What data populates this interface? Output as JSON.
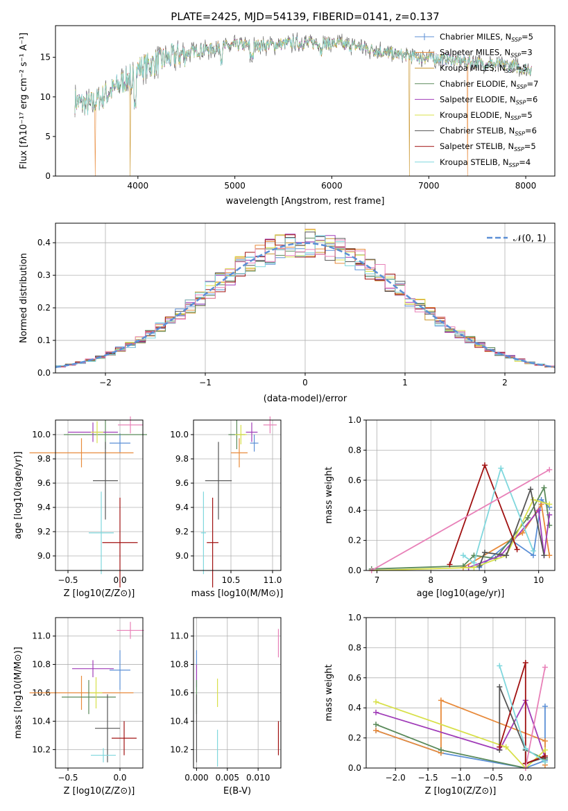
{
  "figure": {
    "title": "PLATE=2425, MJD=54139, FIBERID=0141, z=0.137"
  },
  "colors": {
    "Chabrier MILES": "#5b8fd6",
    "Salpeter MILES": "#e88a3a",
    "Kroupa MILES": "#c9942a",
    "Chabrier ELODIE": "#5a8a5a",
    "Salpeter ELODIE": "#a03cb8",
    "Kroupa ELODIE": "#d8e04a",
    "Chabrier STELIB": "#555555",
    "Salpeter STELIB": "#a01010",
    "Kroupa STELIB": "#7fd7dd",
    "extra": "#e880b8",
    "gauss": "#5b8fd6"
  },
  "chart_data": [
    {
      "id": "spectrum",
      "type": "line",
      "xlabel": "wavelength [Angstrom, rest frame]",
      "ylabel": "Flux [f_λ10^-17 erg cm^-2 s^-1 A^-1]",
      "xlim": [
        3150,
        8300
      ],
      "ylim": [
        0,
        19
      ],
      "xticks": [
        "4000",
        "5000",
        "6000",
        "7000",
        "8000"
      ],
      "yticks": [
        "0",
        "5",
        "10",
        "15"
      ],
      "legend_position": "top-right",
      "legend": [
        "Chabrier MILES, N_SSP=5",
        "Salpeter MILES, N_SSP=3",
        "Kroupa MILES, N_SSP=5",
        "Chabrier ELODIE, N_SSP=7",
        "Salpeter ELODIE, N_SSP=6",
        "Kroupa ELODIE, N_SSP=5",
        "Chabrier STELIB, N_SSP=6",
        "Salpeter STELIB, N_SSP=5",
        "Kroupa STELIB, N_SSP=4"
      ],
      "continuum_points": [
        [
          3350,
          9.5
        ],
        [
          3500,
          9.0
        ],
        [
          3700,
          10.5
        ],
        [
          3900,
          12.5
        ],
        [
          4000,
          13.5
        ],
        [
          4200,
          14.5
        ],
        [
          4500,
          15.5
        ],
        [
          4700,
          16.0
        ],
        [
          5000,
          16.5
        ],
        [
          5300,
          16.5
        ],
        [
          5600,
          16.8
        ],
        [
          6000,
          16.8
        ],
        [
          6300,
          16.3
        ],
        [
          6600,
          15.5
        ],
        [
          6900,
          15.0
        ],
        [
          7200,
          14.8
        ],
        [
          7500,
          14.3
        ],
        [
          7800,
          14.0
        ],
        [
          8050,
          13.5
        ]
      ],
      "dropouts": [
        {
          "model": "Salpeter MILES",
          "x": 3560
        },
        {
          "model": "Kroupa MILES",
          "x": 3920
        },
        {
          "model": "Kroupa MILES",
          "x": 6800
        },
        {
          "model": "Salpeter MILES",
          "x": 7400
        }
      ]
    },
    {
      "id": "residual-histogram",
      "type": "histogram",
      "xlabel": "(data-model)/error",
      "ylabel": "Normed distribution",
      "xlim": [
        -2.5,
        2.5
      ],
      "ylim": [
        0,
        0.46
      ],
      "xticks": [
        "−2",
        "−1",
        "0",
        "1",
        "2"
      ],
      "yticks": [
        "0.0",
        "0.1",
        "0.2",
        "0.3",
        "0.4"
      ],
      "grid": true,
      "legend": [
        "𝒩(0, 1)"
      ],
      "legend_position": "top-right",
      "bin_width": 0.1,
      "reference_curve": "normal(0,1)"
    },
    {
      "id": "age-vs-Z",
      "type": "scatter",
      "xlabel": "Z [log10(Z/Z⊙)]",
      "ylabel": "age  [log10(age/yr)]",
      "xlim": [
        -0.62,
        0.22
      ],
      "ylim": [
        8.88,
        10.12
      ],
      "xticks": [
        "−0.5",
        "0.0"
      ],
      "xtick_values": [
        -0.5,
        0.0
      ],
      "yticks": [
        "9.0",
        "9.2",
        "9.4",
        "9.6",
        "9.8",
        "10.0"
      ],
      "ytick_values": [
        9.0,
        9.2,
        9.4,
        9.6,
        9.8,
        10.0
      ],
      "grid": true,
      "points": [
        {
          "model": "Chabrier MILES",
          "x": 0.0,
          "y": 9.93,
          "xerr": 0.1,
          "yerr": 0.08
        },
        {
          "model": "Salpeter MILES",
          "x": -0.37,
          "y": 9.85,
          "xerr": 0.5,
          "yerr": 0.12
        },
        {
          "model": "Chabrier ELODIE",
          "x": -0.14,
          "y": 10.0,
          "xerr": 0.4,
          "yerr": 0.12
        },
        {
          "model": "Salpeter ELODIE",
          "x": -0.26,
          "y": 10.02,
          "xerr": 0.24,
          "yerr": 0.08
        },
        {
          "model": "Kroupa ELODIE",
          "x": -0.22,
          "y": 10.02,
          "xerr": 0.06,
          "yerr": 0.09
        },
        {
          "model": "Chabrier STELIB",
          "x": -0.14,
          "y": 9.62,
          "xerr": 0.12,
          "yerr": 0.32
        },
        {
          "model": "Salpeter STELIB",
          "x": 0.0,
          "y": 9.11,
          "xerr": 0.17,
          "yerr": 0.37
        },
        {
          "model": "Kroupa STELIB",
          "x": -0.18,
          "y": 9.19,
          "xerr": 0.12,
          "yerr": 0.34
        },
        {
          "model": "extra",
          "x": 0.1,
          "y": 10.08,
          "xerr": 0.12,
          "yerr": 0.07
        }
      ]
    },
    {
      "id": "age-vs-mass",
      "type": "scatter",
      "xlabel": "mass [log10(M/M⊙)]",
      "ylabel": "",
      "xlim": [
        10.05,
        11.1
      ],
      "ylim": [
        8.88,
        10.12
      ],
      "xticks": [
        "10.5",
        "11.0"
      ],
      "xtick_values": [
        10.5,
        11.0
      ],
      "yticks": [
        "9.0",
        "9.2",
        "9.4",
        "9.6",
        "9.8",
        "10.0"
      ],
      "ytick_values": [
        9.0,
        9.2,
        9.4,
        9.6,
        9.8,
        10.0
      ],
      "grid": true,
      "points": [
        {
          "model": "Chabrier MILES",
          "x": 10.78,
          "y": 9.93,
          "xerr": 0.05,
          "yerr": 0.07
        },
        {
          "model": "Salpeter MILES",
          "x": 10.6,
          "y": 9.85,
          "xerr": 0.1,
          "yerr": 0.12
        },
        {
          "model": "Chabrier ELODIE",
          "x": 10.57,
          "y": 10.0,
          "xerr": 0.1,
          "yerr": 0.12
        },
        {
          "model": "Salpeter ELODIE",
          "x": 10.75,
          "y": 10.02,
          "xerr": 0.07,
          "yerr": 0.08
        },
        {
          "model": "Kroupa ELODIE",
          "x": 10.62,
          "y": 10.0,
          "xerr": 0.07,
          "yerr": 0.08
        },
        {
          "model": "Chabrier STELIB",
          "x": 10.35,
          "y": 9.62,
          "xerr": 0.16,
          "yerr": 0.32
        },
        {
          "model": "Salpeter STELIB",
          "x": 10.28,
          "y": 9.11,
          "xerr": 0.07,
          "yerr": 0.37
        },
        {
          "model": "Kroupa STELIB",
          "x": 10.17,
          "y": 9.19,
          "xerr": 0.03,
          "yerr": 0.34
        },
        {
          "model": "extra",
          "x": 10.97,
          "y": 10.08,
          "xerr": 0.08,
          "yerr": 0.07
        }
      ]
    },
    {
      "id": "massweight-vs-age",
      "type": "line",
      "xlabel": "age  [log10(age/yr)]",
      "ylabel": "mass weight",
      "xlim": [
        6.8,
        10.3
      ],
      "ylim": [
        0,
        1
      ],
      "xticks": [
        "7",
        "8",
        "9",
        "10"
      ],
      "xtick_values": [
        7,
        8,
        9,
        10
      ],
      "yticks": [
        "0.0",
        "0.2",
        "0.4",
        "0.6",
        "0.8",
        "1.0"
      ],
      "ytick_values": [
        0,
        0.2,
        0.4,
        0.6,
        0.8,
        1.0
      ],
      "grid": true,
      "series": [
        {
          "model": "Chabrier MILES",
          "points": [
            [
              8.9,
              0.02
            ],
            [
              9.5,
              0.2
            ],
            [
              9.9,
              0.1
            ],
            [
              10.05,
              0.47
            ],
            [
              10.2,
              0.42
            ]
          ]
        },
        {
          "model": "Salpeter MILES",
          "points": [
            [
              8.6,
              0.02
            ],
            [
              9.7,
              0.25
            ],
            [
              10.05,
              0.44
            ],
            [
              10.2,
              0.1
            ]
          ]
        },
        {
          "model": "Chabrier ELODIE",
          "points": [
            [
              6.9,
              0.01
            ],
            [
              8.6,
              0.03
            ],
            [
              8.8,
              0.1
            ],
            [
              9.2,
              0.08
            ],
            [
              9.8,
              0.35
            ],
            [
              10.1,
              0.55
            ],
            [
              10.2,
              0.3
            ]
          ]
        },
        {
          "model": "Salpeter ELODIE",
          "points": [
            [
              8.7,
              0.02
            ],
            [
              9.3,
              0.1
            ],
            [
              10.0,
              0.4
            ],
            [
              10.1,
              0.1
            ],
            [
              10.2,
              0.37
            ]
          ]
        },
        {
          "model": "Kroupa ELODIE",
          "points": [
            [
              6.9,
              0.0
            ],
            [
              8.8,
              0.02
            ],
            [
              9.4,
              0.1
            ],
            [
              9.9,
              0.47
            ],
            [
              10.2,
              0.44
            ]
          ]
        },
        {
          "model": "Chabrier STELIB",
          "points": [
            [
              8.9,
              0.03
            ],
            [
              9.0,
              0.12
            ],
            [
              9.4,
              0.1
            ],
            [
              9.85,
              0.54
            ],
            [
              10.1,
              0.1
            ]
          ]
        },
        {
          "model": "Salpeter STELIB",
          "points": [
            [
              8.35,
              0.04
            ],
            [
              9.0,
              0.7
            ],
            [
              9.6,
              0.14
            ]
          ]
        },
        {
          "model": "Kroupa STELIB",
          "points": [
            [
              8.6,
              0.1
            ],
            [
              8.8,
              0.05
            ],
            [
              9.3,
              0.68
            ],
            [
              9.9,
              0.13
            ]
          ]
        },
        {
          "model": "extra",
          "points": [
            [
              6.9,
              0.0
            ],
            [
              10.2,
              0.67
            ]
          ]
        }
      ]
    },
    {
      "id": "mass-vs-Z",
      "type": "scatter",
      "xlabel": "Z [log10(Z/Z⊙)]",
      "ylabel": "mass [log10(M/M⊙)]",
      "xlim": [
        -0.62,
        0.22
      ],
      "ylim": [
        10.07,
        11.13
      ],
      "xticks": [
        "−0.5",
        "0.0"
      ],
      "xtick_values": [
        -0.5,
        0.0
      ],
      "yticks": [
        "10.2",
        "10.4",
        "10.6",
        "10.8",
        "11.0"
      ],
      "ytick_values": [
        10.2,
        10.4,
        10.6,
        10.8,
        11.0
      ],
      "grid": true,
      "points": [
        {
          "model": "Chabrier MILES",
          "x": 0.0,
          "y": 10.76,
          "xerr": 0.1,
          "yerr": 0.14
        },
        {
          "model": "Salpeter MILES",
          "x": -0.37,
          "y": 10.6,
          "xerr": 0.5,
          "yerr": 0.12
        },
        {
          "model": "Chabrier ELODIE",
          "x": -0.3,
          "y": 10.57,
          "xerr": 0.26,
          "yerr": 0.12
        },
        {
          "model": "Salpeter ELODIE",
          "x": -0.26,
          "y": 10.77,
          "xerr": 0.2,
          "yerr": 0.06
        },
        {
          "model": "Kroupa ELODIE",
          "x": -0.23,
          "y": 10.6,
          "xerr": 0.06,
          "yerr": 0.11
        },
        {
          "model": "Chabrier STELIB",
          "x": -0.12,
          "y": 10.35,
          "xerr": 0.12,
          "yerr": 0.24
        },
        {
          "model": "Salpeter STELIB",
          "x": 0.04,
          "y": 10.28,
          "xerr": 0.12,
          "yerr": 0.12
        },
        {
          "model": "Kroupa STELIB",
          "x": -0.16,
          "y": 10.16,
          "xerr": 0.12,
          "yerr": 0.05
        },
        {
          "model": "extra",
          "x": 0.1,
          "y": 11.04,
          "xerr": 0.13,
          "yerr": 0.06
        }
      ]
    },
    {
      "id": "mass-vs-EBV",
      "type": "scatter",
      "xlabel": "E(B-V)",
      "ylabel": "",
      "xlim": [
        -0.0005,
        0.0137
      ],
      "ylim": [
        10.07,
        11.13
      ],
      "xticks": [
        "0.000",
        "0.005",
        "0.010"
      ],
      "xtick_values": [
        0.0,
        0.005,
        0.01
      ],
      "yticks": [
        "10.2",
        "10.4",
        "10.6",
        "10.8",
        "11.0"
      ],
      "ytick_values": [
        10.2,
        10.4,
        10.6,
        10.8,
        11.0
      ],
      "grid": true,
      "points": [
        {
          "model": "Chabrier MILES",
          "x": 0.0,
          "y": 10.76,
          "xerr": 0,
          "yerr": 0.14
        },
        {
          "model": "Salpeter ELODIE",
          "x": 0.0,
          "y": 10.72,
          "xerr": 0,
          "yerr": 0.08
        },
        {
          "model": "Chabrier ELODIE",
          "x": 0.0,
          "y": 10.57,
          "xerr": 0,
          "yerr": 0.12
        },
        {
          "model": "Chabrier STELIB",
          "x": 0.0,
          "y": 10.35,
          "xerr": 0,
          "yerr": 0.24
        },
        {
          "model": "Kroupa ELODIE",
          "x": 0.0034,
          "y": 10.6,
          "xerr": 0,
          "yerr": 0.1
        },
        {
          "model": "Kroupa STELIB",
          "x": 0.0034,
          "y": 10.21,
          "xerr": 0,
          "yerr": 0.13
        },
        {
          "model": "Salpeter STELIB",
          "x": 0.0133,
          "y": 10.28,
          "xerr": 0,
          "yerr": 0.12
        },
        {
          "model": "extra",
          "x": 0.0133,
          "y": 10.95,
          "xerr": 0,
          "yerr": 0.1
        }
      ]
    },
    {
      "id": "massweight-vs-Z",
      "type": "line",
      "xlabel": "Z [log10(Z/Z⊙)]",
      "ylabel": "mass weight",
      "xlim": [
        -2.45,
        0.45
      ],
      "ylim": [
        0,
        1
      ],
      "xticks": [
        "−2.0",
        "−1.5",
        "−1.0",
        "−0.5",
        "0.0"
      ],
      "xtick_values": [
        -2.0,
        -1.5,
        -1.0,
        -0.5,
        0.0
      ],
      "yticks": [
        "0.0",
        "0.2",
        "0.4",
        "0.6",
        "0.8",
        "1.0"
      ],
      "ytick_values": [
        0,
        0.2,
        0.4,
        0.6,
        0.8,
        1.0
      ],
      "grid": true,
      "series": [
        {
          "model": "Chabrier MILES",
          "points": [
            [
              -2.3,
              0.25
            ],
            [
              -1.3,
              0.1
            ],
            [
              0.0,
              0.0
            ],
            [
              0.3,
              0.05
            ],
            [
              0.3,
              0.41
            ]
          ]
        },
        {
          "model": "Salpeter MILES",
          "points": [
            [
              -2.3,
              0.25
            ],
            [
              -1.3,
              0.1
            ],
            [
              -1.3,
              0.45
            ],
            [
              0.3,
              0.18
            ],
            [
              0.3,
              0.02
            ]
          ]
        },
        {
          "model": "Chabrier ELODIE",
          "points": [
            [
              -2.3,
              0.29
            ],
            [
              -1.3,
              0.12
            ],
            [
              0.0,
              0.0
            ],
            [
              0.0,
              0.12
            ],
            [
              0.3,
              0.06
            ]
          ]
        },
        {
          "model": "Salpeter ELODIE",
          "points": [
            [
              -2.3,
              0.37
            ],
            [
              -0.4,
              0.12
            ],
            [
              0.0,
              0.45
            ],
            [
              0.3,
              0.07
            ]
          ]
        },
        {
          "model": "Kroupa ELODIE",
          "points": [
            [
              -2.3,
              0.44
            ],
            [
              -0.3,
              0.14
            ],
            [
              0.0,
              0.0
            ],
            [
              0.3,
              0.12
            ]
          ]
        },
        {
          "model": "Chabrier STELIB",
          "points": [
            [
              -0.4,
              0.12
            ],
            [
              -0.4,
              0.54
            ],
            [
              0.0,
              0.12
            ],
            [
              0.0,
              0.03
            ],
            [
              0.3,
              0.07
            ]
          ]
        },
        {
          "model": "Salpeter STELIB",
          "points": [
            [
              -0.4,
              0.14
            ],
            [
              0.0,
              0.7
            ],
            [
              0.0,
              0.03
            ],
            [
              0.3,
              0.08
            ]
          ]
        },
        {
          "model": "Kroupa STELIB",
          "points": [
            [
              -0.4,
              0.68
            ],
            [
              0.0,
              0.13
            ],
            [
              0.3,
              0.04
            ]
          ]
        },
        {
          "model": "extra",
          "points": [
            [
              0.0,
              0.0
            ],
            [
              0.3,
              0.67
            ]
          ]
        }
      ]
    }
  ]
}
